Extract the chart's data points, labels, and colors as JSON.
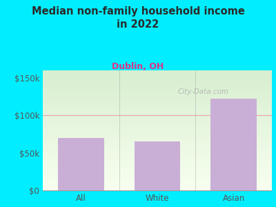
{
  "title": "Median non-family household income\nin 2022",
  "subtitle": "Dublin, OH",
  "categories": [
    "All",
    "White",
    "Asian"
  ],
  "values": [
    70000,
    65000,
    122000
  ],
  "bar_color": "#c9aed6",
  "title_color": "#2a2a2a",
  "subtitle_color": "#cc4488",
  "tick_label_color": "#555555",
  "background_outer": "#00eeff",
  "background_inner_top": "#d8efd0",
  "background_inner_bottom": "#f8fff0",
  "yticks": [
    0,
    50000,
    100000,
    150000
  ],
  "ytick_labels": [
    "$0",
    "$50k",
    "$100k",
    "$150k"
  ],
  "ylim": [
    0,
    160000
  ],
  "grid_color": "#e8a0b0",
  "watermark": "City-Data.com"
}
